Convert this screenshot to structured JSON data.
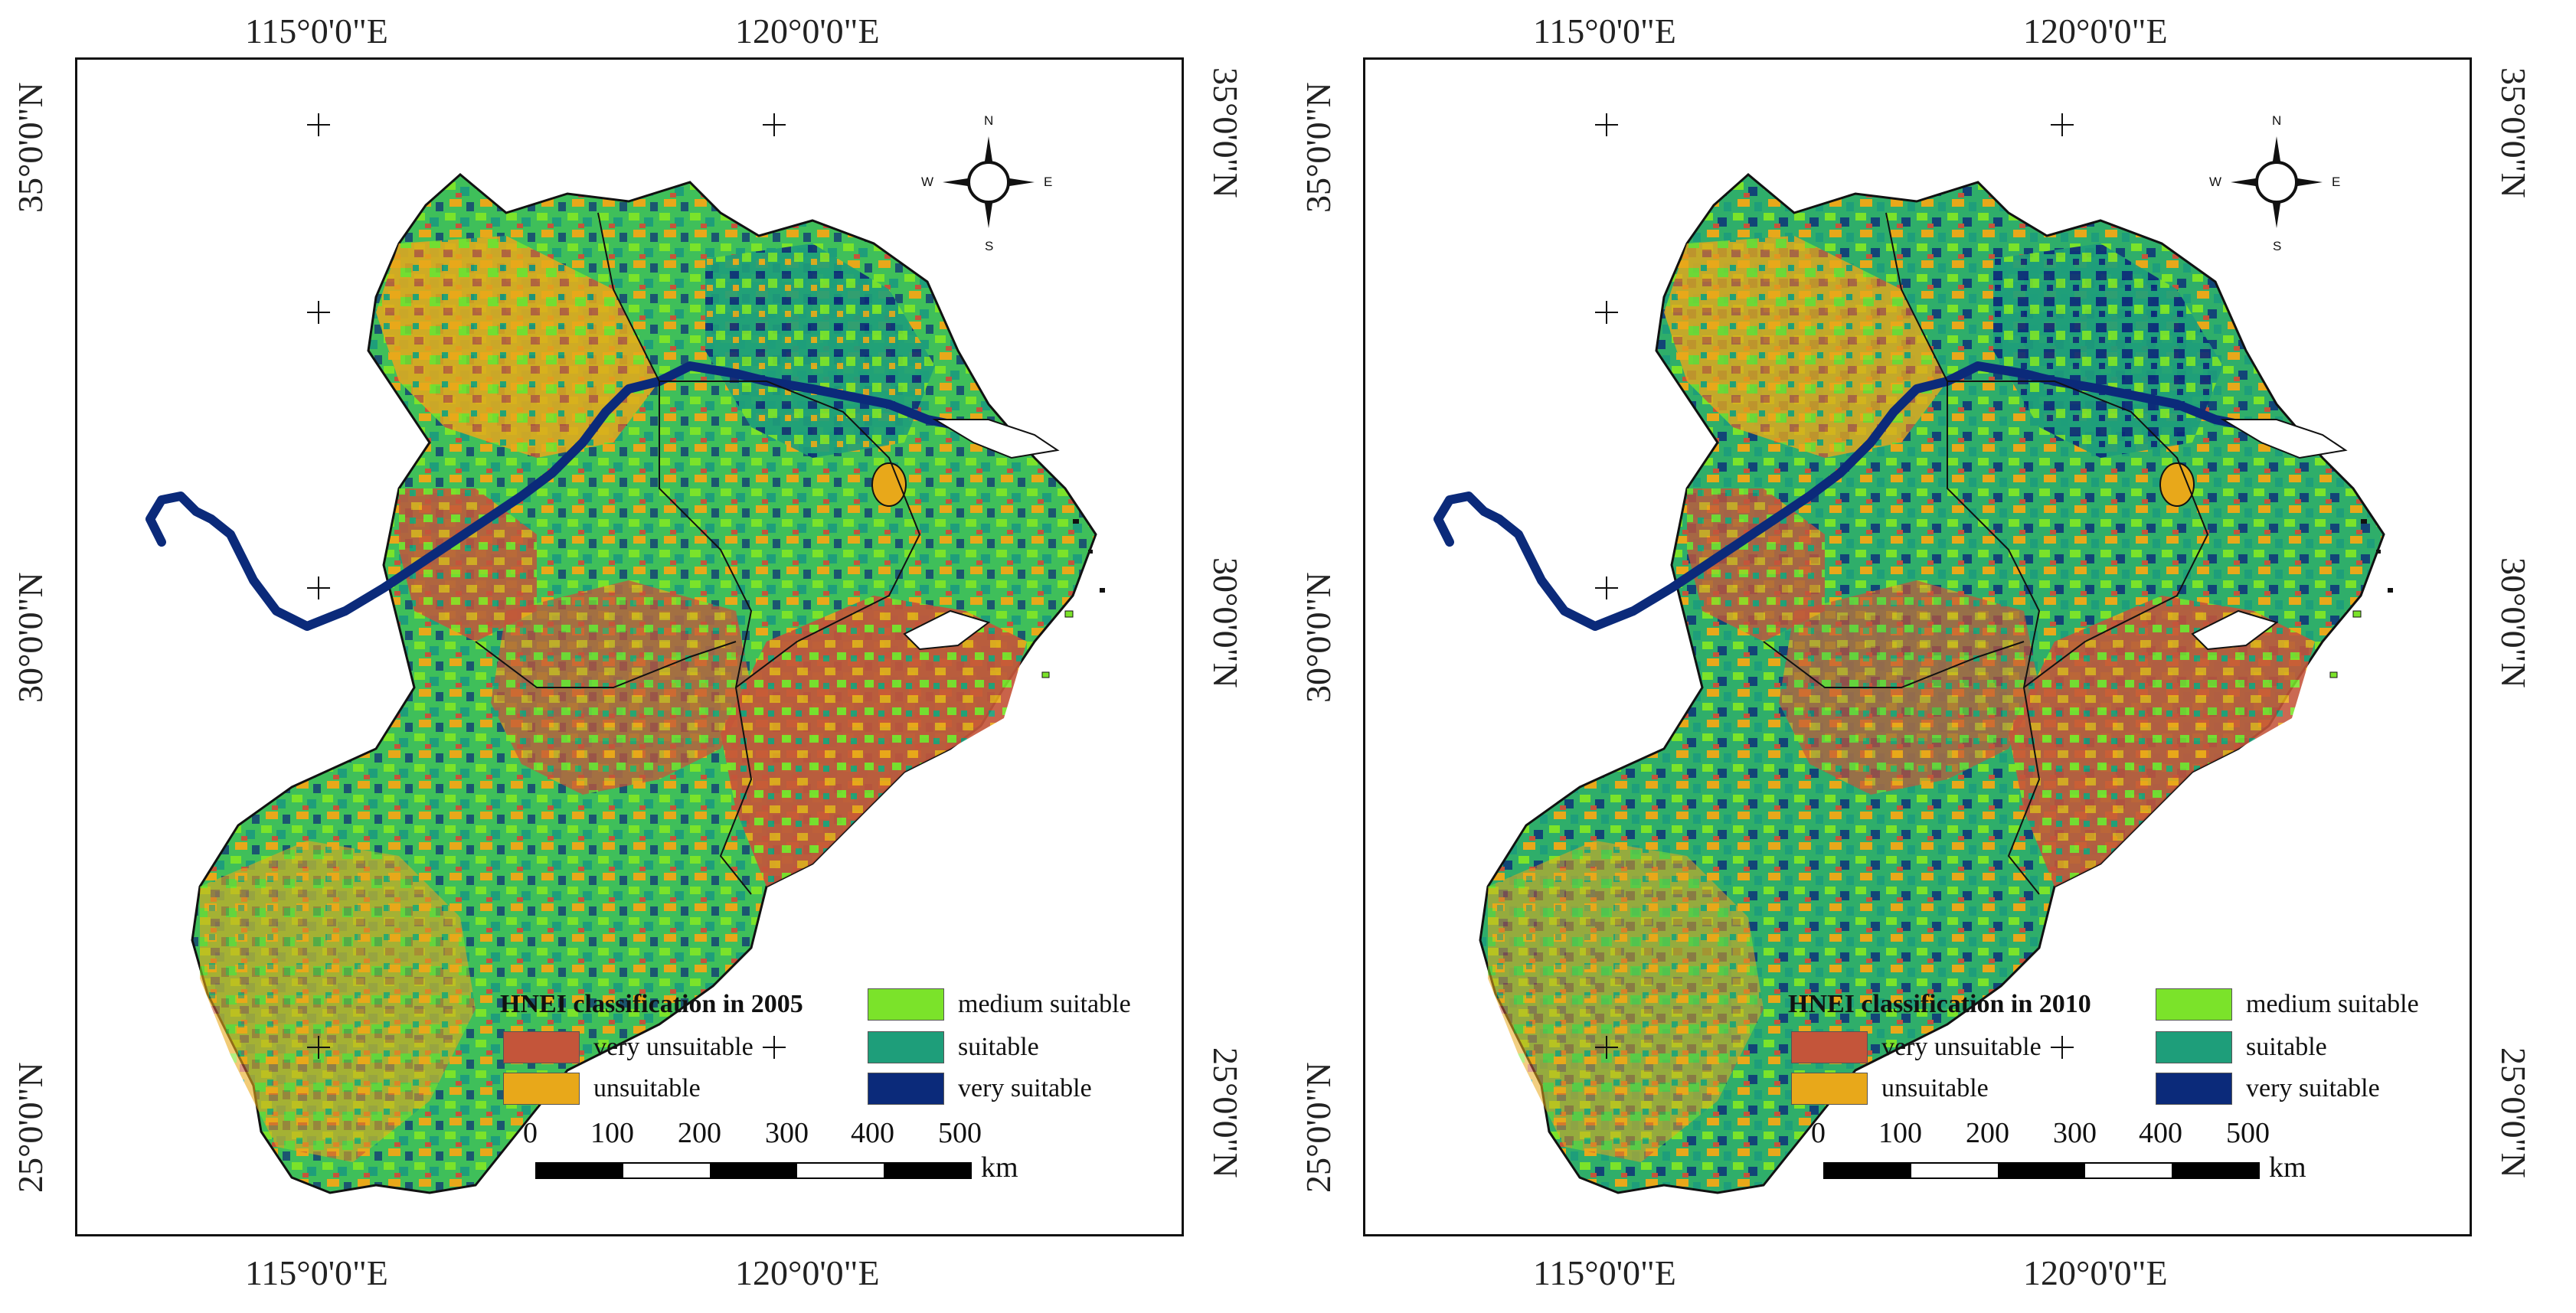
{
  "colors": {
    "very_unsuitable": "#c4553a",
    "unsuitable": "#e8a81a",
    "medium_suitable": "#7be32a",
    "suitable": "#1e9e7a",
    "very_suitable": "#0b2a7a"
  },
  "panels": [
    {
      "legend_title": "HNEI classification in 2005",
      "legend": [
        "very unsuitable",
        "unsuitable",
        "medium suitable",
        "suitable",
        "very suitable"
      ],
      "lon_labels": [
        "115°0'0\"E",
        "120°0'0\"E"
      ],
      "lat_labels": [
        "35°0'0\"N",
        "30°0'0\"N",
        "25°0'0\"N"
      ],
      "scale_numbers": [
        "0",
        "100",
        "200",
        "300",
        "400",
        "500"
      ],
      "scale_unit": "km",
      "compass": {
        "n": "N",
        "s": "S",
        "e": "E",
        "w": "W"
      }
    },
    {
      "legend_title": "HNEI classification in 2010",
      "legend": [
        "very unsuitable",
        "unsuitable",
        "medium suitable",
        "suitable",
        "very suitable"
      ],
      "lon_labels": [
        "115°0'0\"E",
        "120°0'0\"E"
      ],
      "lat_labels": [
        "35°0'0\"N",
        "30°0'0\"N",
        "25°0'0\"N"
      ],
      "scale_numbers": [
        "0",
        "100",
        "200",
        "300",
        "400",
        "500"
      ],
      "scale_unit": "km",
      "compass": {
        "n": "N",
        "s": "S",
        "e": "E",
        "w": "W"
      }
    }
  ]
}
